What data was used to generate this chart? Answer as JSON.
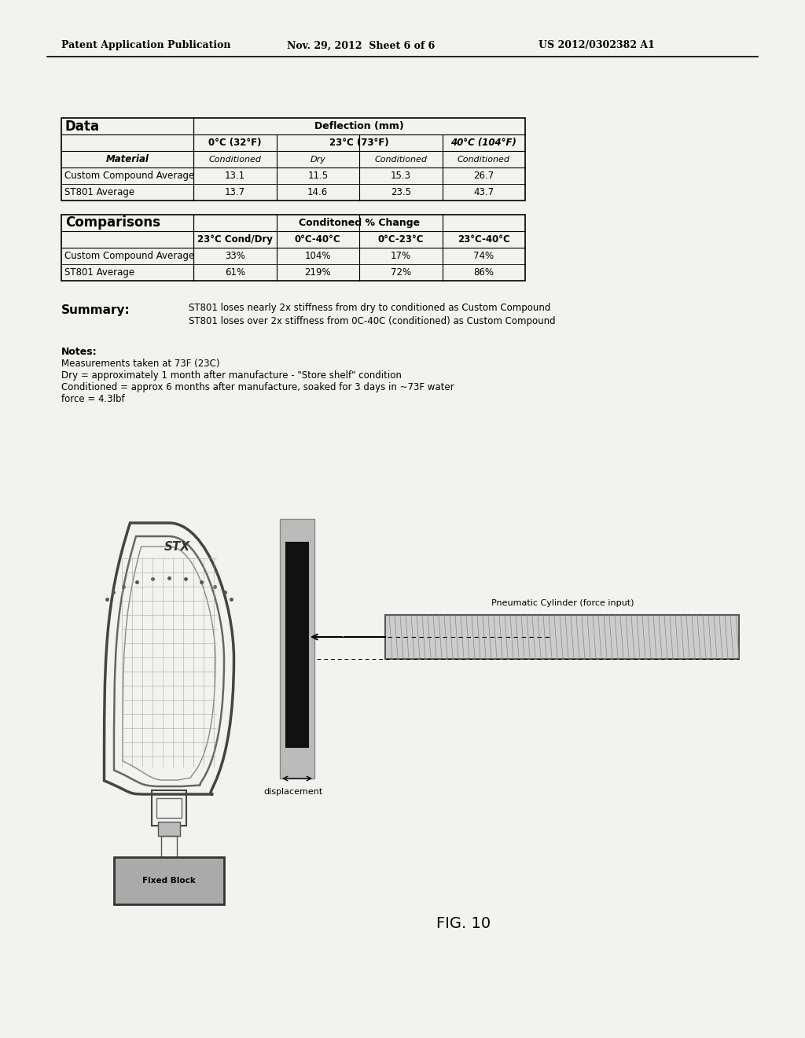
{
  "header_left": "Patent Application Publication",
  "header_mid": "Nov. 29, 2012  Sheet 6 of 6",
  "header_right": "US 2012/0302382 A1",
  "table1_title": "Data",
  "table1_col_header": "Deflection (mm)",
  "table1_subsubcols": [
    "Conditioned",
    "Dry",
    "Conditioned",
    "Conditioned"
  ],
  "table1_row_label": "Material",
  "table1_rows": [
    [
      "Custom Compound Average",
      "13.1",
      "11.5",
      "15.3",
      "26.7"
    ],
    [
      "ST801 Average",
      "13.7",
      "14.6",
      "23.5",
      "43.7"
    ]
  ],
  "table2_title": "Comparisons",
  "table2_col_header": "Conditoned % Change",
  "table2_subcols": [
    "23°C Cond/Dry",
    "0°C-40°C",
    "0°C-23°C",
    "23°C-40°C"
  ],
  "table2_rows": [
    [
      "Custom Compound Average",
      "33%",
      "104%",
      "17%",
      "74%"
    ],
    [
      "ST801 Average",
      "61%",
      "219%",
      "72%",
      "86%"
    ]
  ],
  "summary_label": "Summary:",
  "summary_lines": [
    "ST801 loses nearly 2x stiffness from dry to conditioned as Custom Compound",
    "ST801 loses over 2x stiffness from 0C-40C (conditioned) as Custom Compound"
  ],
  "notes_title": "Notes:",
  "notes_lines": [
    "Measurements taken at 73F (23C)",
    "Dry = approximately 1 month after manufacture - \"Store shelf\" condition",
    "Conditioned = approx 6 months after manufacture, soaked for 3 days in ~73F water",
    "force = 4.3lbf"
  ],
  "fig_label": "FIG. 10",
  "pneumatic_label": "Pneumatic Cylinder (force input)",
  "displacement_label": "displacement",
  "fixed_block_label": "Fixed Block",
  "bg_color": "#f2f2ee"
}
